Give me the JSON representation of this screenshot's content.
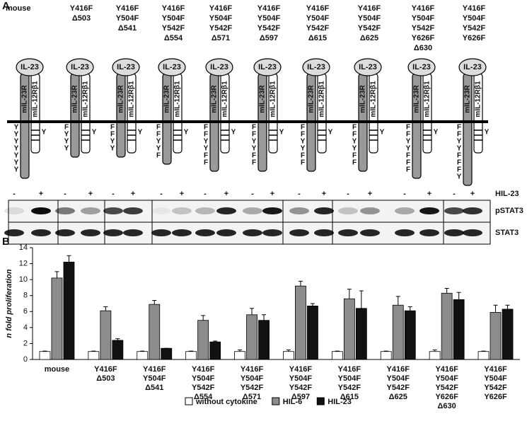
{
  "panel_a": {
    "label": "A",
    "constructs": [
      {
        "label": [
          "mouse"
        ],
        "residues": [
          "Y",
          "Y",
          "Y",
          "Y",
          "Y",
          "Y",
          "Y"
        ]
      },
      {
        "label": [
          "Y416F",
          "Δ503"
        ],
        "residues": [
          "F",
          "Y",
          "Y",
          "Y"
        ]
      },
      {
        "label": [
          "Y416F",
          "Y504F",
          "Δ541"
        ],
        "residues": [
          "F",
          "F",
          "Y",
          "Y"
        ]
      },
      {
        "label": [
          "Y416F",
          "Y504F",
          "Y542F",
          "Δ554"
        ],
        "residues": [
          "F",
          "F",
          "Y",
          "Y",
          "F"
        ]
      },
      {
        "label": [
          "Y416F",
          "Y504F",
          "Y542F",
          "Δ571"
        ],
        "residues": [
          "F",
          "F",
          "Y",
          "Y",
          "F",
          "F"
        ]
      },
      {
        "label": [
          "Y416F",
          "Y504F",
          "Y542F",
          "Δ597"
        ],
        "residues": [
          "F",
          "F",
          "Y",
          "Y",
          "F",
          "F"
        ]
      },
      {
        "label": [
          "Y416F",
          "Y504F",
          "Y542F",
          "Δ615"
        ],
        "residues": [
          "F",
          "F",
          "Y",
          "Y",
          "F",
          "F"
        ]
      },
      {
        "label": [
          "Y416F",
          "Y504F",
          "Y542F",
          "Δ625"
        ],
        "residues": [
          "F",
          "F",
          "Y",
          "Y",
          "F",
          "F"
        ]
      },
      {
        "label": [
          "Y416F",
          "Y504F",
          "Y542F",
          "Y626F",
          "Δ630"
        ],
        "residues": [
          "F",
          "F",
          "Y",
          "Y",
          "F",
          "F",
          "F"
        ]
      },
      {
        "label": [
          "Y416F",
          "Y504F",
          "Y542F",
          "Y626F"
        ],
        "residues": [
          "F",
          "F",
          "Y",
          "Y",
          "F",
          "F",
          "F",
          "Y"
        ]
      }
    ],
    "cytokine": "IL-23",
    "receptor_1": "mIL-23R",
    "receptor_2": "mIL-12Rβ1",
    "receptor_2_residue": "Y",
    "blot": {
      "lanes": [
        "-",
        "+",
        "-",
        "+",
        "-",
        "+",
        "-",
        "+",
        "-",
        "+",
        "-",
        "+",
        "-",
        "+",
        "-",
        "+",
        "-",
        "+",
        "-",
        "+"
      ],
      "treatment": "HIL-23",
      "rows": [
        "pSTAT3",
        "STAT3"
      ]
    }
  },
  "chart_data": {
    "type": "bar",
    "panel_label": "B",
    "ylabel": "n fold proliferation",
    "categories": [
      [
        "mouse"
      ],
      [
        "Y416F",
        "Δ503"
      ],
      [
        "Y416F",
        "Y504F",
        "Δ541"
      ],
      [
        "Y416F",
        "Y504F",
        "Y542F",
        "Δ554"
      ],
      [
        "Y416F",
        "Y504F",
        "Y542F",
        "Δ571"
      ],
      [
        "Y416F",
        "Y504F",
        "Y542F",
        "Δ597"
      ],
      [
        "Y416F",
        "Y504F",
        "Y542F",
        "Δ615"
      ],
      [
        "Y416F",
        "Y504F",
        "Y542F",
        "Δ625"
      ],
      [
        "Y416F",
        "Y504F",
        "Y542F",
        "Y626F",
        "Δ630"
      ],
      [
        "Y416F",
        "Y504F",
        "Y542F",
        "Y626F"
      ]
    ],
    "series": [
      {
        "name": "without cytokine",
        "color": "#ffffff",
        "values": [
          1,
          1,
          1,
          1,
          1,
          1,
          1,
          1,
          1,
          1
        ],
        "errors": [
          0.05,
          0.05,
          0.05,
          0.05,
          0.2,
          0.2,
          0.05,
          0.05,
          0.2,
          0.05
        ]
      },
      {
        "name": "HIL-6",
        "color": "#8c8c8c",
        "values": [
          10.2,
          6.1,
          6.9,
          4.9,
          5.6,
          9.2,
          7.6,
          6.8,
          8.3,
          5.9
        ],
        "errors": [
          0.8,
          0.5,
          0.5,
          0.6,
          0.8,
          0.6,
          1.2,
          1.1,
          0.6,
          0.9
        ]
      },
      {
        "name": "HIL-23",
        "color": "#111111",
        "values": [
          12.2,
          2.4,
          1.4,
          2.2,
          4.9,
          6.7,
          6.4,
          6.1,
          7.5,
          6.3
        ],
        "errors": [
          0.8,
          0.2,
          0,
          0.1,
          0.7,
          0.3,
          2.2,
          0.5,
          0.9,
          0.5
        ]
      }
    ],
    "ylim": [
      0,
      14
    ],
    "yticks": [
      0,
      2,
      4,
      6,
      8,
      10,
      12,
      14
    ],
    "grid": false
  }
}
